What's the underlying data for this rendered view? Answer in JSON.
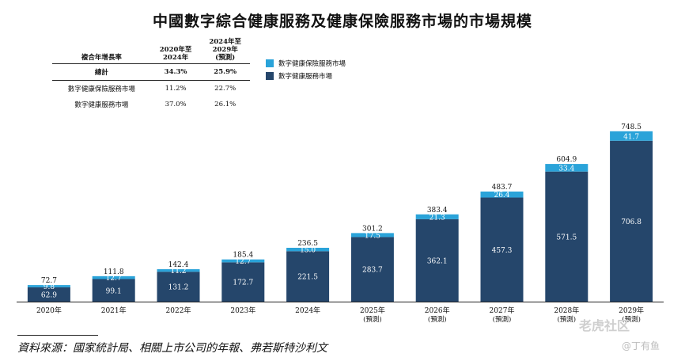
{
  "title": "中國數字綜合健康服務及健康保險服務市場的市場規模",
  "cagr_table": {
    "header": [
      "複合年增長率",
      "2020年至\n2024年",
      "2024年至\n2029年\n(預測)"
    ],
    "rows": [
      {
        "label": "總計",
        "a": "34.3%",
        "b": "25.9%"
      },
      {
        "label": "數字健康保險服務市場",
        "a": "11.2%",
        "b": "22.7%"
      },
      {
        "label": "數字健康服務市場",
        "a": "37.0%",
        "b": "26.1%"
      }
    ]
  },
  "legend": [
    {
      "name": "數字健康保險服務市場",
      "color": "#2aa3d9"
    },
    {
      "name": "數字健康服務市場",
      "color": "#25466b"
    }
  ],
  "source": "資料來源：國家統計局、相關上市公司的年報、弗若斯特沙利文",
  "watermark": "老虎社区",
  "watermark_author": "@丁有鱼",
  "chart_data": {
    "type": "bar",
    "stacked": true,
    "categories": [
      "2020年",
      "2021年",
      "2022年",
      "2023年",
      "2024年",
      "2025年",
      "2026年",
      "2027年",
      "2028年",
      "2029年"
    ],
    "category_notes": [
      "",
      "",
      "",
      "",
      "",
      "(預測)",
      "(預測)",
      "(預測)",
      "(預測)",
      "(預測)"
    ],
    "series": [
      {
        "name": "數字健康服務市場",
        "color": "#25466b",
        "values": [
          62.9,
          99.1,
          131.2,
          172.7,
          221.5,
          283.7,
          362.1,
          457.3,
          571.5,
          706.8
        ]
      },
      {
        "name": "數字健康保險服務市場",
        "color": "#2aa3d9",
        "values": [
          9.8,
          12.7,
          11.2,
          12.7,
          15.0,
          17.5,
          21.3,
          26.4,
          33.4,
          41.7
        ]
      }
    ],
    "totals": [
      72.7,
      111.8,
      142.4,
      185.4,
      236.5,
      301.2,
      383.4,
      483.7,
      604.9,
      748.5
    ],
    "ylim": [
      0,
      800
    ]
  }
}
